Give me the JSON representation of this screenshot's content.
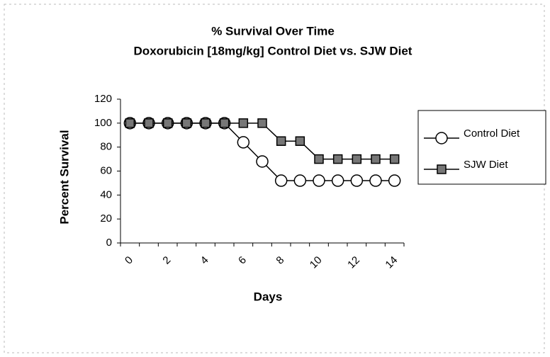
{
  "chart_data": {
    "type": "line",
    "title": "% Survival Over Time",
    "subtitle": "Doxorubicin [18mg/kg] Control Diet vs. SJW Diet",
    "x_label": "Days",
    "y_label": "Percent Survival",
    "categories": [
      0,
      null,
      2,
      null,
      4,
      null,
      6,
      null,
      8,
      null,
      10,
      null,
      12,
      null,
      14
    ],
    "series": [
      {
        "name": "Control Diet",
        "color": "#000000",
        "marker": "circle",
        "values": [
          100,
          100,
          100,
          100,
          100,
          100,
          84,
          68,
          52,
          52,
          52,
          52,
          52,
          52,
          52
        ]
      },
      {
        "name": "SJW Diet",
        "color": "#000000",
        "marker": "square",
        "values": [
          100,
          100,
          100,
          100,
          100,
          100,
          100,
          100,
          85,
          85,
          70,
          70,
          70,
          70,
          70
        ]
      }
    ],
    "ylim": [
      0,
      120
    ],
    "yticks": [
      0,
      20,
      40,
      60,
      80,
      100,
      120
    ],
    "grid": false,
    "legend": "right"
  }
}
